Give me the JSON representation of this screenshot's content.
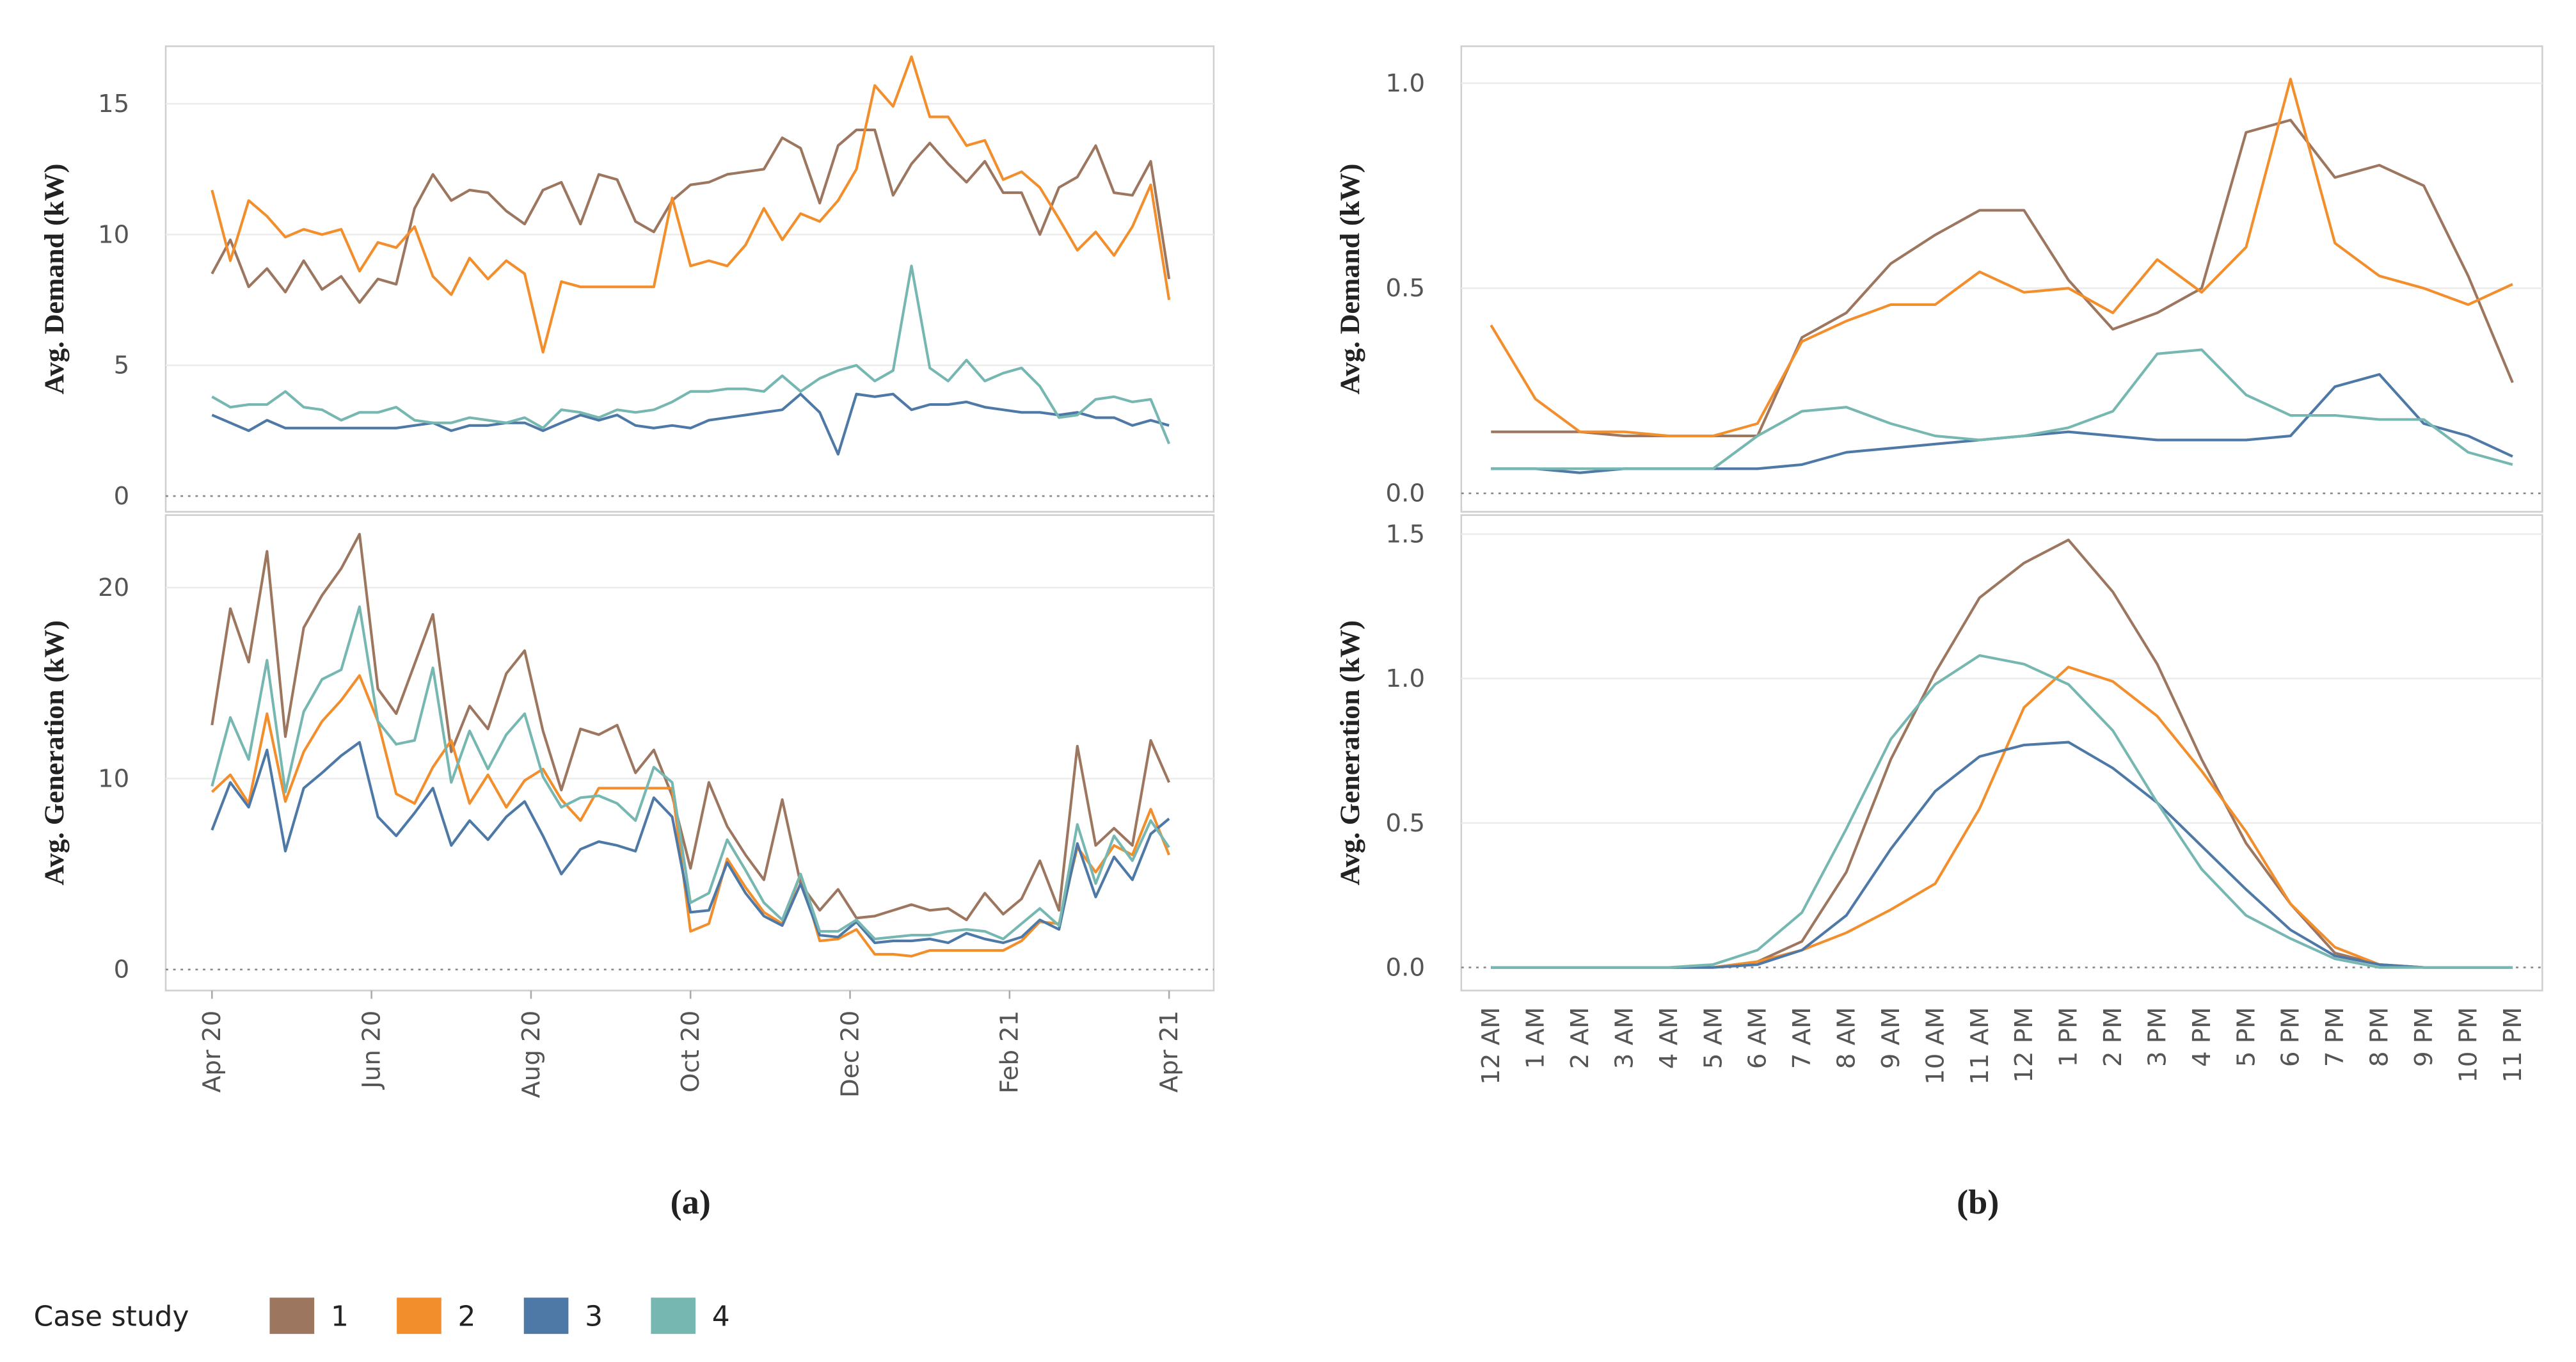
{
  "chart_data": [
    {
      "type": "line",
      "y_label": "Avg. Demand (kW)",
      "xlim": [
        -0.58,
        12.56
      ],
      "ylim": [
        -0.6,
        17.2
      ],
      "yticks": [
        0,
        5,
        10,
        15
      ],
      "grid": true,
      "series": [
        {
          "color": "#9d7660",
          "values": [
            8.5,
            9.8,
            8.0,
            8.7,
            7.8,
            9.0,
            7.9,
            8.4,
            7.4,
            8.3,
            8.1,
            11.0,
            12.3,
            11.3,
            11.7,
            11.6,
            10.9,
            10.4,
            11.7,
            12.0,
            10.4,
            12.3,
            12.1,
            10.5,
            10.1,
            11.3,
            11.9,
            12.0,
            12.3,
            12.4,
            12.5,
            13.7,
            13.3,
            11.2,
            13.4,
            14.0,
            14.0,
            11.5,
            12.7,
            13.5,
            12.7,
            12.0,
            12.8,
            11.6,
            11.6,
            10.0,
            11.8,
            12.2,
            13.4,
            11.6,
            11.5,
            12.8,
            8.3
          ]
        },
        {
          "color": "#f28e2b",
          "values": [
            11.7,
            9.0,
            11.3,
            10.7,
            9.9,
            10.2,
            10.0,
            10.2,
            8.6,
            9.7,
            9.5,
            10.3,
            8.4,
            7.7,
            9.1,
            8.3,
            9.0,
            8.5,
            5.5,
            8.2,
            8.0,
            8.0,
            8.0,
            8.0,
            8.0,
            11.4,
            8.8,
            9.0,
            8.8,
            9.6,
            11.0,
            9.8,
            10.8,
            10.5,
            11.3,
            12.5,
            15.7,
            14.9,
            16.8,
            14.5,
            14.5,
            13.4,
            13.6,
            12.1,
            12.4,
            11.8,
            10.6,
            9.4,
            10.1,
            9.2,
            10.3,
            11.9,
            7.5
          ]
        },
        {
          "color": "#4e79a7",
          "values": [
            3.1,
            2.8,
            2.5,
            2.9,
            2.6,
            2.6,
            2.6,
            2.6,
            2.6,
            2.6,
            2.6,
            2.7,
            2.8,
            2.5,
            2.7,
            2.7,
            2.8,
            2.8,
            2.5,
            2.8,
            3.1,
            2.9,
            3.1,
            2.7,
            2.6,
            2.7,
            2.6,
            2.9,
            3.0,
            3.1,
            3.2,
            3.3,
            3.9,
            3.2,
            1.6,
            3.9,
            3.8,
            3.9,
            3.3,
            3.5,
            3.5,
            3.6,
            3.4,
            3.3,
            3.2,
            3.2,
            3.1,
            3.2,
            3.0,
            3.0,
            2.7,
            2.9,
            2.7
          ]
        },
        {
          "color": "#76b7b2",
          "values": [
            3.8,
            3.4,
            3.5,
            3.5,
            4.0,
            3.4,
            3.3,
            2.9,
            3.2,
            3.2,
            3.4,
            2.9,
            2.8,
            2.8,
            3.0,
            2.9,
            2.8,
            3.0,
            2.6,
            3.3,
            3.2,
            3.0,
            3.3,
            3.2,
            3.3,
            3.6,
            4.0,
            4.0,
            4.1,
            4.1,
            4.0,
            4.6,
            4.0,
            4.5,
            4.8,
            5.0,
            4.4,
            4.8,
            8.8,
            4.9,
            4.4,
            5.2,
            4.4,
            4.7,
            4.9,
            4.2,
            3.0,
            3.1,
            3.7,
            3.8,
            3.6,
            3.7,
            2.0
          ]
        }
      ]
    },
    {
      "type": "line",
      "y_label": "Avg. Generation (kW)",
      "caption": "(a)",
      "x": [
        0,
        0.23,
        0.46,
        0.69,
        0.92,
        1.15,
        1.38,
        1.62,
        1.85,
        2.08,
        2.31,
        2.54,
        2.77,
        3.0,
        3.23,
        3.46,
        3.69,
        3.92,
        4.15,
        4.38,
        4.62,
        4.85,
        5.08,
        5.31,
        5.54,
        5.77,
        6.0,
        6.23,
        6.46,
        6.69,
        6.92,
        7.15,
        7.38,
        7.62,
        7.85,
        8.08,
        8.31,
        8.54,
        8.77,
        9.0,
        9.23,
        9.46,
        9.69,
        9.92,
        10.15,
        10.38,
        10.62,
        10.85,
        11.08,
        11.31,
        11.54,
        11.77,
        12.0
      ],
      "xlim": [
        -0.58,
        12.56
      ],
      "xticks": [
        {
          "value": 0,
          "label": "Apr 20"
        },
        {
          "value": 2,
          "label": "Jun 20"
        },
        {
          "value": 4,
          "label": "Aug 20"
        },
        {
          "value": 6,
          "label": "Oct 20"
        },
        {
          "value": 8,
          "label": "Dec 20"
        },
        {
          "value": 10,
          "label": "Feb 21"
        },
        {
          "value": 12,
          "label": "Apr 21"
        }
      ],
      "ylim": [
        -1.1,
        23.8
      ],
      "yticks": [
        0,
        10,
        20
      ],
      "grid": true,
      "series": [
        {
          "color": "#9d7660",
          "values": [
            12.8,
            18.9,
            16.1,
            21.9,
            12.2,
            17.9,
            19.6,
            21.0,
            22.8,
            14.7,
            13.4,
            16.0,
            18.6,
            11.4,
            13.8,
            12.6,
            15.5,
            16.7,
            12.5,
            9.4,
            12.6,
            12.3,
            12.8,
            10.3,
            11.5,
            9.1,
            5.3,
            9.8,
            7.5,
            6.0,
            4.7,
            8.9,
            4.5,
            3.1,
            4.2,
            2.7,
            2.8,
            3.1,
            3.4,
            3.1,
            3.2,
            2.6,
            4.0,
            2.9,
            3.7,
            5.7,
            3.1,
            11.7,
            6.5,
            7.4,
            6.5,
            12.0,
            9.8
          ]
        },
        {
          "color": "#f28e2b",
          "values": [
            9.3,
            10.2,
            8.7,
            13.4,
            8.8,
            11.4,
            13.0,
            14.1,
            15.4,
            13.0,
            9.2,
            8.7,
            10.6,
            12.0,
            8.7,
            10.2,
            8.5,
            9.9,
            10.5,
            8.9,
            7.8,
            9.5,
            9.5,
            9.5,
            9.5,
            9.5,
            2.0,
            2.4,
            5.8,
            4.3,
            3.0,
            2.4,
            5.0,
            1.5,
            1.6,
            2.1,
            0.8,
            0.8,
            0.7,
            1.0,
            1.0,
            1.0,
            1.0,
            1.0,
            1.5,
            2.5,
            2.4,
            6.4,
            5.1,
            6.5,
            6.0,
            8.4,
            6.0
          ]
        },
        {
          "color": "#4e79a7",
          "values": [
            7.3,
            9.8,
            8.5,
            11.5,
            6.2,
            9.5,
            10.3,
            11.2,
            11.9,
            8.0,
            7.0,
            8.2,
            9.5,
            6.5,
            7.8,
            6.8,
            8.0,
            8.8,
            7.0,
            5.0,
            6.3,
            6.7,
            6.5,
            6.2,
            9.0,
            8.0,
            3.0,
            3.1,
            5.6,
            4.0,
            2.8,
            2.3,
            4.5,
            1.8,
            1.7,
            2.5,
            1.4,
            1.5,
            1.5,
            1.6,
            1.4,
            1.9,
            1.6,
            1.4,
            1.7,
            2.6,
            2.1,
            6.6,
            3.8,
            5.9,
            4.7,
            7.1,
            7.9
          ]
        },
        {
          "color": "#76b7b2",
          "values": [
            9.6,
            13.2,
            11.0,
            16.2,
            9.3,
            13.5,
            15.2,
            15.7,
            19.0,
            13.0,
            11.8,
            12.0,
            15.8,
            9.8,
            12.5,
            10.5,
            12.3,
            13.4,
            10.1,
            8.5,
            9.0,
            9.1,
            8.7,
            7.8,
            10.6,
            9.8,
            3.5,
            4.0,
            6.8,
            5.2,
            3.5,
            2.6,
            5.0,
            2.0,
            2.0,
            2.6,
            1.6,
            1.7,
            1.8,
            1.8,
            2.0,
            2.1,
            2.0,
            1.6,
            2.4,
            3.2,
            2.3,
            7.6,
            4.5,
            7.0,
            5.7,
            7.8,
            6.4
          ]
        }
      ]
    },
    {
      "type": "line",
      "y_label": "Avg. Demand (kW)",
      "ylim": [
        -0.045,
        1.09
      ],
      "yticks": [
        {
          "value": 0,
          "label": "0.0"
        },
        {
          "value": 0.5,
          "label": "0.5"
        },
        {
          "value": 1,
          "label": "1.0"
        }
      ],
      "grid": true,
      "series": [
        {
          "color": "#9d7660",
          "values": [
            0.15,
            0.15,
            0.15,
            0.14,
            0.14,
            0.14,
            0.14,
            0.38,
            0.44,
            0.56,
            0.63,
            0.69,
            0.69,
            0.52,
            0.4,
            0.44,
            0.5,
            0.88,
            0.91,
            0.77,
            0.8,
            0.75,
            0.53,
            0.27
          ]
        },
        {
          "color": "#f28e2b",
          "values": [
            0.41,
            0.23,
            0.15,
            0.15,
            0.14,
            0.14,
            0.17,
            0.37,
            0.42,
            0.46,
            0.46,
            0.54,
            0.49,
            0.5,
            0.44,
            0.57,
            0.49,
            0.6,
            1.01,
            0.61,
            0.53,
            0.5,
            0.46,
            0.51
          ]
        },
        {
          "color": "#4e79a7",
          "values": [
            0.06,
            0.06,
            0.05,
            0.06,
            0.06,
            0.06,
            0.06,
            0.07,
            0.1,
            0.11,
            0.12,
            0.13,
            0.14,
            0.15,
            0.14,
            0.13,
            0.13,
            0.13,
            0.14,
            0.26,
            0.29,
            0.17,
            0.14,
            0.09
          ]
        },
        {
          "color": "#76b7b2",
          "values": [
            0.06,
            0.06,
            0.06,
            0.06,
            0.06,
            0.06,
            0.14,
            0.2,
            0.21,
            0.17,
            0.14,
            0.13,
            0.14,
            0.16,
            0.2,
            0.34,
            0.35,
            0.24,
            0.19,
            0.19,
            0.18,
            0.18,
            0.1,
            0.07
          ]
        }
      ]
    },
    {
      "type": "line",
      "y_label": "Avg. Generation (kW)",
      "caption": "(b)",
      "categories": [
        "12 AM",
        "1 AM",
        "2 AM",
        "3 AM",
        "4 AM",
        "5 AM",
        "6 AM",
        "7 AM",
        "8 AM",
        "9 AM",
        "10 AM",
        "11 AM",
        "12 PM",
        "1 PM",
        "2 PM",
        "3 PM",
        "4 PM",
        "5 PM",
        "6 PM",
        "7 PM",
        "8 PM",
        "9 PM",
        "10 PM",
        "11 PM"
      ],
      "ylim": [
        -0.08,
        1.566
      ],
      "yticks": [
        {
          "value": 0,
          "label": "0.0"
        },
        {
          "value": 0.5,
          "label": "0.5"
        },
        {
          "value": 1,
          "label": "1.0"
        },
        {
          "value": 1.5,
          "label": "1.5"
        }
      ],
      "grid": true,
      "series": [
        {
          "color": "#9d7660",
          "values": [
            0,
            0,
            0,
            0,
            0,
            0,
            0.02,
            0.09,
            0.33,
            0.72,
            1.02,
            1.28,
            1.4,
            1.48,
            1.3,
            1.05,
            0.72,
            0.43,
            0.22,
            0.05,
            0.01,
            0,
            0,
            0
          ]
        },
        {
          "color": "#f28e2b",
          "values": [
            0,
            0,
            0,
            0,
            0,
            0,
            0.02,
            0.06,
            0.12,
            0.2,
            0.29,
            0.55,
            0.9,
            1.04,
            0.99,
            0.87,
            0.68,
            0.47,
            0.22,
            0.07,
            0.01,
            0,
            0,
            0
          ]
        },
        {
          "color": "#4e79a7",
          "values": [
            0,
            0,
            0,
            0,
            0,
            0,
            0.01,
            0.06,
            0.18,
            0.41,
            0.61,
            0.73,
            0.77,
            0.78,
            0.69,
            0.57,
            0.42,
            0.27,
            0.13,
            0.04,
            0.01,
            0,
            0,
            0
          ]
        },
        {
          "color": "#76b7b2",
          "values": [
            0,
            0,
            0,
            0,
            0,
            0.01,
            0.06,
            0.19,
            0.48,
            0.79,
            0.98,
            1.08,
            1.05,
            0.98,
            0.82,
            0.57,
            0.34,
            0.18,
            0.1,
            0.03,
            0,
            0,
            0,
            0
          ]
        }
      ]
    }
  ],
  "legend": {
    "title": "Case study",
    "entries": [
      {
        "name": "1",
        "color": "#9d7660"
      },
      {
        "name": "2",
        "color": "#f28e2b"
      },
      {
        "name": "3",
        "color": "#4e79a7"
      },
      {
        "name": "4",
        "color": "#76b7b2"
      }
    ]
  }
}
